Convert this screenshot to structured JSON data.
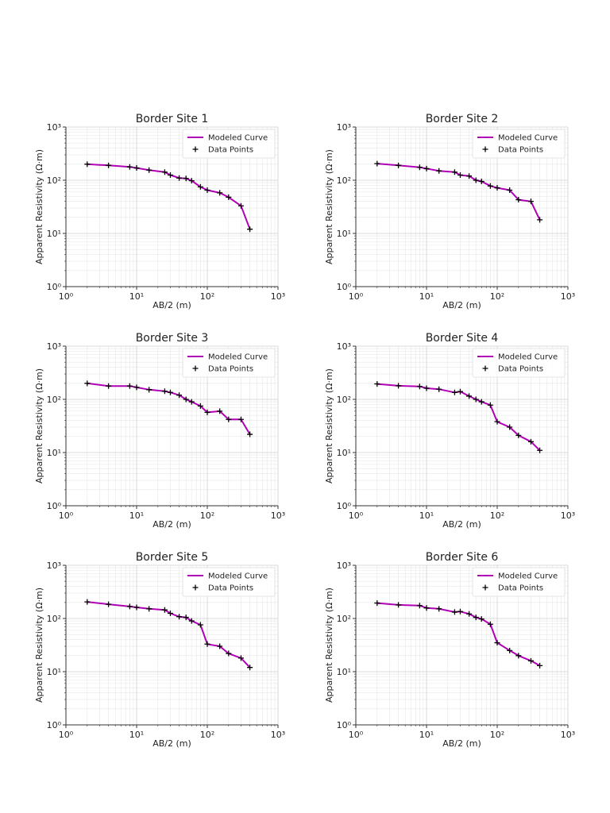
{
  "figure": {
    "legend_model": "Modeled Curve",
    "legend_data": "Data Points",
    "line_color": "#b000b5",
    "marker_color": "#000000"
  },
  "chart_data": [
    {
      "type": "line",
      "title": "Border Site 1",
      "xlabel": "AB/2 (m)",
      "ylabel": "Apparent Resistivity (Ω·m)",
      "xscale": "log",
      "yscale": "log",
      "xlim": [
        1,
        1000
      ],
      "ylim": [
        1,
        1000
      ],
      "x_tick_labels": [
        "10⁰",
        "10¹",
        "10²",
        "10³"
      ],
      "y_tick_labels": [
        "10⁰",
        "10¹",
        "10²",
        "10³"
      ],
      "legend": [
        "Modeled Curve",
        "Data Points"
      ],
      "legend_position": "top-right",
      "grid": true,
      "x": [
        2,
        4,
        8,
        10,
        15,
        25,
        30,
        40,
        50,
        60,
        80,
        100,
        150,
        200,
        300,
        400
      ],
      "y": [
        200,
        190,
        178,
        170,
        155,
        142,
        125,
        110,
        108,
        98,
        75,
        65,
        58,
        48,
        33,
        12
      ]
    },
    {
      "type": "line",
      "title": "Border Site 2",
      "xlabel": "AB/2 (m)",
      "ylabel": "Apparent Resistivity (Ω·m)",
      "xscale": "log",
      "yscale": "log",
      "xlim": [
        1,
        1000
      ],
      "ylim": [
        1,
        1000
      ],
      "x_tick_labels": [
        "10⁰",
        "10¹",
        "10²",
        "10³"
      ],
      "y_tick_labels": [
        "10⁰",
        "10¹",
        "10²",
        "10³"
      ],
      "legend": [
        "Modeled Curve",
        "Data Points"
      ],
      "legend_position": "top-right",
      "grid": true,
      "x": [
        2,
        4,
        8,
        10,
        15,
        25,
        30,
        40,
        50,
        60,
        80,
        100,
        150,
        200,
        300,
        400
      ],
      "y": [
        205,
        190,
        175,
        165,
        150,
        142,
        125,
        120,
        100,
        95,
        78,
        72,
        65,
        43,
        40,
        18
      ]
    },
    {
      "type": "line",
      "title": "Border Site 3",
      "xlabel": "AB/2 (m)",
      "ylabel": "Apparent Resistivity (Ω·m)",
      "xscale": "log",
      "yscale": "log",
      "xlim": [
        1,
        1000
      ],
      "ylim": [
        1,
        1000
      ],
      "x_tick_labels": [
        "10⁰",
        "10¹",
        "10²",
        "10³"
      ],
      "y_tick_labels": [
        "10⁰",
        "10¹",
        "10²",
        "10³"
      ],
      "legend": [
        "Modeled Curve",
        "Data Points"
      ],
      "legend_position": "top-right",
      "grid": true,
      "x": [
        2,
        4,
        8,
        10,
        15,
        25,
        30,
        40,
        50,
        60,
        80,
        100,
        150,
        200,
        300,
        400
      ],
      "y": [
        200,
        178,
        178,
        168,
        152,
        142,
        135,
        120,
        100,
        90,
        75,
        57,
        60,
        42,
        42,
        22
      ]
    },
    {
      "type": "line",
      "title": "Border Site 4",
      "xlabel": "AB/2 (m)",
      "ylabel": "Apparent Resistivity (Ω·m)",
      "xscale": "log",
      "yscale": "log",
      "xlim": [
        1,
        1000
      ],
      "ylim": [
        1,
        1000
      ],
      "x_tick_labels": [
        "10⁰",
        "10¹",
        "10²",
        "10³"
      ],
      "y_tick_labels": [
        "10⁰",
        "10¹",
        "10²",
        "10³"
      ],
      "legend": [
        "Modeled Curve",
        "Data Points"
      ],
      "legend_position": "top-right",
      "grid": true,
      "x": [
        2,
        4,
        8,
        10,
        15,
        25,
        30,
        40,
        50,
        60,
        80,
        100,
        150,
        200,
        300,
        400
      ],
      "y": [
        195,
        180,
        175,
        162,
        155,
        135,
        140,
        115,
        100,
        90,
        78,
        38,
        30,
        21,
        16,
        11
      ]
    },
    {
      "type": "line",
      "title": "Border Site 5",
      "xlabel": "AB/2 (m)",
      "ylabel": "Apparent Resistivity (Ω·m)",
      "xscale": "log",
      "yscale": "log",
      "xlim": [
        1,
        1000
      ],
      "ylim": [
        1,
        1000
      ],
      "x_tick_labels": [
        "10⁰",
        "10¹",
        "10²",
        "10³"
      ],
      "y_tick_labels": [
        "10⁰",
        "10¹",
        "10²",
        "10³"
      ],
      "legend": [
        "Modeled Curve",
        "Data Points"
      ],
      "legend_position": "top-right",
      "grid": true,
      "x": [
        2,
        4,
        8,
        10,
        15,
        25,
        30,
        40,
        50,
        60,
        80,
        100,
        150,
        200,
        300,
        400
      ],
      "y": [
        205,
        185,
        168,
        162,
        152,
        145,
        125,
        108,
        105,
        90,
        76,
        33,
        30,
        22,
        18,
        12
      ]
    },
    {
      "type": "line",
      "title": "Border Site 6",
      "xlabel": "AB/2 (m)",
      "ylabel": "Apparent Resistivity (Ω·m)",
      "xscale": "log",
      "yscale": "log",
      "xlim": [
        1,
        1000
      ],
      "ylim": [
        1,
        1000
      ],
      "x_tick_labels": [
        "10⁰",
        "10¹",
        "10²",
        "10³"
      ],
      "y_tick_labels": [
        "10⁰",
        "10¹",
        "10²",
        "10³"
      ],
      "legend": [
        "Modeled Curve",
        "Data Points"
      ],
      "legend_position": "top-right",
      "grid": true,
      "x": [
        2,
        4,
        8,
        10,
        15,
        25,
        30,
        40,
        50,
        60,
        80,
        100,
        150,
        200,
        300,
        400
      ],
      "y": [
        195,
        180,
        175,
        158,
        152,
        132,
        135,
        122,
        105,
        98,
        78,
        35,
        25,
        20,
        16,
        13
      ]
    }
  ]
}
